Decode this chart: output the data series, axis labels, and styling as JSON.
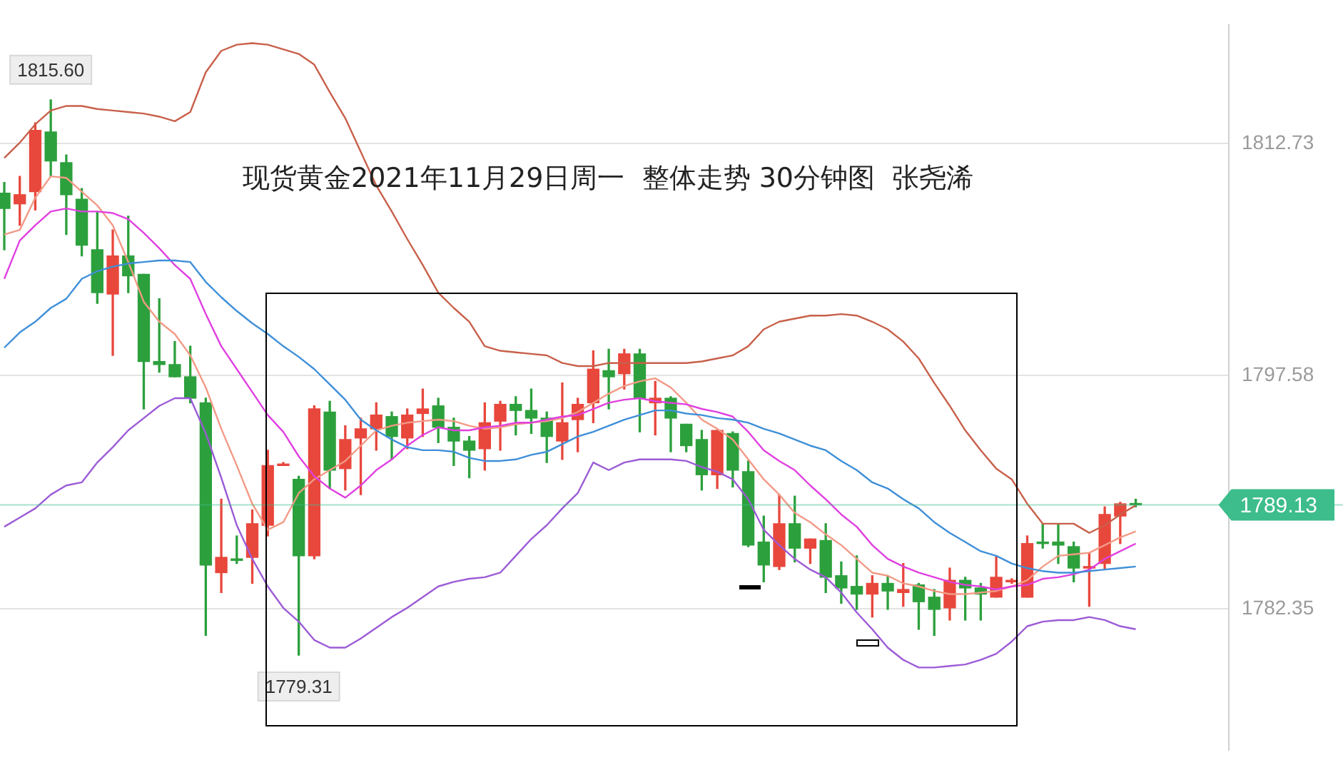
{
  "chart_data": {
    "type": "candlestick",
    "title": "现货黄金2021年11月29日周一  整体走势 30分钟图  张尧浠",
    "categories": [
      null,
      null,
      null,
      null,
      null,
      null,
      null,
      null,
      null,
      null,
      null,
      null,
      null,
      null,
      null,
      null,
      null,
      null,
      null,
      null,
      null,
      null,
      null,
      null,
      null,
      null,
      null,
      null,
      null,
      null,
      null,
      null,
      null,
      null,
      null,
      null,
      null,
      null,
      null,
      null,
      null,
      null,
      null,
      null,
      null,
      null,
      null,
      null,
      null,
      null,
      null,
      null,
      null,
      null,
      null,
      null,
      null,
      null,
      null,
      null,
      null,
      null,
      null,
      null,
      null,
      null,
      null,
      null,
      null,
      null,
      null,
      null,
      null,
      null
    ],
    "ohlc": [
      [
        1809.5,
        1810.2,
        1805.8,
        1808.5
      ],
      [
        1808.8,
        1810.6,
        1807.4,
        1809.4
      ],
      [
        1809.6,
        1814.1,
        1808.4,
        1813.6
      ],
      [
        1813.5,
        1815.6,
        1810.6,
        1811.6
      ],
      [
        1811.5,
        1812.0,
        1806.8,
        1809.4
      ],
      [
        1809.1,
        1809.8,
        1805.4,
        1806.1
      ],
      [
        1805.8,
        1808.3,
        1802.3,
        1803.0
      ],
      [
        1802.9,
        1807.1,
        1798.9,
        1805.4
      ],
      [
        1805.4,
        1808.0,
        1803.0,
        1804.1
      ],
      [
        1804.2,
        1804.2,
        1795.4,
        1798.5
      ],
      [
        1798.5,
        1802.6,
        1797.8,
        1798.3
      ],
      [
        1798.3,
        1799.8,
        1797.5,
        1797.5
      ],
      [
        1797.5,
        1799.5,
        1795.8,
        1796.1
      ],
      [
        1795.8,
        1796.1,
        1780.6,
        1785.2
      ],
      [
        1784.7,
        1789.5,
        1783.4,
        1785.7
      ],
      [
        1785.6,
        1787.1,
        1785.3,
        1785.5
      ],
      [
        1785.7,
        1788.8,
        1784.0,
        1787.9
      ],
      [
        1787.8,
        1792.7,
        1787.1,
        1791.7
      ],
      [
        1791.7,
        1791.9,
        1791.7,
        1791.8
      ],
      [
        1790.8,
        1791.0,
        1779.31,
        1785.8
      ],
      [
        1785.8,
        1795.6,
        1785.6,
        1795.4
      ],
      [
        1795.2,
        1795.9,
        1790.2,
        1791.4
      ],
      [
        1791.5,
        1794.3,
        1790.1,
        1793.4
      ],
      [
        1793.5,
        1794.8,
        1789.8,
        1794.1
      ],
      [
        1794.1,
        1795.8,
        1792.7,
        1795.0
      ],
      [
        1794.9,
        1795.2,
        1792.1,
        1793.6
      ],
      [
        1793.5,
        1795.4,
        1792.8,
        1795.0
      ],
      [
        1795.1,
        1796.7,
        1793.6,
        1795.4
      ],
      [
        1795.6,
        1796.1,
        1793.2,
        1794.2
      ],
      [
        1794.2,
        1794.8,
        1791.7,
        1793.3
      ],
      [
        1793.3,
        1793.6,
        1790.9,
        1792.7
      ],
      [
        1792.8,
        1795.8,
        1791.4,
        1794.5
      ],
      [
        1794.6,
        1795.9,
        1792.7,
        1795.7
      ],
      [
        1795.7,
        1796.2,
        1793.7,
        1795.3
      ],
      [
        1795.3,
        1796.7,
        1793.8,
        1794.8
      ],
      [
        1794.8,
        1795.2,
        1791.9,
        1793.6
      ],
      [
        1793.3,
        1797.1,
        1792.1,
        1794.5
      ],
      [
        1794.7,
        1796.1,
        1792.6,
        1795.7
      ],
      [
        1795.8,
        1799.2,
        1794.5,
        1798.0
      ],
      [
        1797.9,
        1799.3,
        1795.4,
        1797.5
      ],
      [
        1797.7,
        1799.3,
        1796.7,
        1799.0
      ],
      [
        1799.0,
        1799.3,
        1793.9,
        1796.1
      ],
      [
        1795.8,
        1797.2,
        1793.7,
        1796.1
      ],
      [
        1796.1,
        1796.2,
        1792.6,
        1794.8
      ],
      [
        1794.4,
        1794.4,
        1792.6,
        1793.0
      ],
      [
        1793.4,
        1794.0,
        1790.1,
        1791.1
      ],
      [
        1791.1,
        1794.0,
        1790.2,
        1794.0
      ],
      [
        1793.8,
        1793.9,
        1790.3,
        1791.4
      ],
      [
        1791.3,
        1792.0,
        1786.4,
        1786.5
      ],
      [
        1786.7,
        1788.4,
        1784.1,
        1785.2
      ],
      [
        1785.1,
        1789.8,
        1784.9,
        1787.9
      ],
      [
        1787.9,
        1789.7,
        1785.4,
        1786.3
      ],
      [
        1786.3,
        1786.9,
        1785.3,
        1786.9
      ],
      [
        1786.8,
        1787.9,
        1783.4,
        1784.4
      ],
      [
        1784.5,
        1785.4,
        1782.7,
        1783.7
      ],
      [
        1783.8,
        1785.8,
        1782.3,
        1783.3
      ],
      [
        1783.3,
        1784.5,
        1781.8,
        1784.0
      ],
      [
        1784.0,
        1784.5,
        1782.3,
        1783.5
      ],
      [
        1783.4,
        1785.3,
        1782.5,
        1783.6
      ],
      [
        1783.9,
        1784.0,
        1781.0,
        1782.8
      ],
      [
        1783.1,
        1783.6,
        1780.6,
        1782.3
      ],
      [
        1782.4,
        1785.0,
        1781.6,
        1784.2
      ],
      [
        1784.2,
        1784.4,
        1781.6,
        1783.7
      ],
      [
        1783.7,
        1784.0,
        1781.6,
        1783.3
      ],
      [
        1783.1,
        1785.8,
        1783.1,
        1784.4
      ],
      [
        1784.1,
        1784.3,
        1784.0,
        1784.2
      ],
      [
        1783.1,
        1787.1,
        1783.1,
        1786.6
      ],
      [
        1786.7,
        1787.9,
        1786.3,
        1786.6
      ],
      [
        1786.7,
        1787.9,
        1785.3,
        1786.5
      ],
      [
        1786.4,
        1786.7,
        1784.1,
        1785.0
      ],
      [
        1785.0,
        1786.0,
        1782.5,
        1785.1
      ],
      [
        1785.3,
        1789.0,
        1784.9,
        1788.5
      ],
      [
        1788.4,
        1789.3,
        1786.6,
        1789.2
      ],
      [
        1789.2,
        1789.5,
        1789.0,
        1789.13
      ]
    ],
    "colors": [
      "#2ca03c",
      "#e8473c",
      "#e8473c",
      "#2ca03c",
      "#2ca03c",
      "#2ca03c",
      "#2ca03c",
      "#e8473c",
      "#2ca03c",
      "#2ca03c",
      "#2ca03c",
      "#2ca03c",
      "#2ca03c",
      "#2ca03c",
      "#e8473c",
      "#2ca03c",
      "#e8473c",
      "#e8473c",
      "#e8473c",
      "#2ca03c",
      "#e8473c",
      "#2ca03c",
      "#e8473c",
      "#e8473c",
      "#e8473c",
      "#2ca03c",
      "#e8473c",
      "#e8473c",
      "#2ca03c",
      "#2ca03c",
      "#2ca03c",
      "#e8473c",
      "#e8473c",
      "#2ca03c",
      "#2ca03c",
      "#2ca03c",
      "#e8473c",
      "#e8473c",
      "#e8473c",
      "#2ca03c",
      "#e8473c",
      "#2ca03c",
      "#e8473c",
      "#2ca03c",
      "#2ca03c",
      "#2ca03c",
      "#e8473c",
      "#2ca03c",
      "#2ca03c",
      "#2ca03c",
      "#e8473c",
      "#2ca03c",
      "#e8473c",
      "#2ca03c",
      "#2ca03c",
      "#2ca03c",
      "#e8473c",
      "#2ca03c",
      "#e8473c",
      "#2ca03c",
      "#2ca03c",
      "#e8473c",
      "#2ca03c",
      "#2ca03c",
      "#e8473c",
      "#e8473c",
      "#e8473c",
      "#2ca03c",
      "#2ca03c",
      "#2ca03c",
      "#e8473c",
      "#e8473c",
      "#e8473c",
      "#2ca03c"
    ],
    "series": [
      {
        "type": "line",
        "color": "#c8604a",
        "values": [
          1811.8,
          1812.8,
          1814.0,
          1814.9,
          1815.2,
          1815.2,
          1815.0,
          1814.9,
          1814.8,
          1814.7,
          1814.5,
          1814.2,
          1814.8,
          1817.4,
          1818.8,
          1819.2,
          1819.3,
          1819.2,
          1818.9,
          1818.6,
          1817.9,
          1816.1,
          1814.4,
          1812.2,
          1810.0,
          1808.3,
          1806.5,
          1804.8,
          1803.0,
          1802.0,
          1801.1,
          1799.5,
          1799.2,
          1799.1,
          1799.0,
          1798.9,
          1798.4,
          1798.2,
          1798.2,
          1798.4,
          1798.4,
          1798.4,
          1798.4,
          1798.4,
          1798.4,
          1798.5,
          1798.7,
          1798.9,
          1799.5,
          1800.6,
          1801.1,
          1801.3,
          1801.5,
          1801.5,
          1801.6,
          1801.5,
          1801.1,
          1800.6,
          1799.8,
          1798.7,
          1797.1,
          1795.6,
          1794.0,
          1792.7,
          1791.5,
          1790.8,
          1789.2,
          1787.9,
          1787.9,
          1787.9,
          1787.3,
          1787.8,
          1788.5,
          1789.1
        ]
      },
      {
        "type": "line",
        "color": "#3f8fd8",
        "values": [
          1799.4,
          1800.4,
          1801.1,
          1802.0,
          1802.6,
          1803.9,
          1804.4,
          1804.7,
          1804.9,
          1805.0,
          1805.1,
          1805.1,
          1805.0,
          1803.7,
          1802.7,
          1801.8,
          1801.0,
          1800.3,
          1799.5,
          1798.8,
          1798.0,
          1797.0,
          1796.0,
          1794.7,
          1794.0,
          1793.4,
          1792.9,
          1792.7,
          1792.7,
          1792.6,
          1792.2,
          1792.0,
          1792.0,
          1792.1,
          1792.4,
          1792.6,
          1793.1,
          1793.6,
          1793.9,
          1794.3,
          1794.7,
          1795.0,
          1795.3,
          1795.3,
          1795.1,
          1795.0,
          1794.8,
          1794.7,
          1794.5,
          1794.1,
          1793.8,
          1793.4,
          1793.0,
          1792.7,
          1792.0,
          1791.4,
          1790.6,
          1790.2,
          1789.5,
          1788.9,
          1788.0,
          1787.3,
          1786.7,
          1786.1,
          1785.8,
          1785.3,
          1785.0,
          1784.8,
          1784.7,
          1784.7,
          1784.8,
          1784.9,
          1785.0,
          1785.1
        ]
      },
      {
        "type": "line",
        "color": "#9c5bd6",
        "values": [
          1787.7,
          1788.3,
          1788.9,
          1789.8,
          1790.4,
          1790.6,
          1791.9,
          1792.9,
          1794.0,
          1794.8,
          1795.6,
          1796.1,
          1796.1,
          1793.8,
          1790.9,
          1787.8,
          1785.6,
          1783.8,
          1782.4,
          1781.5,
          1780.3,
          1779.8,
          1779.8,
          1780.4,
          1781.1,
          1781.8,
          1782.4,
          1783.1,
          1783.8,
          1784.1,
          1784.3,
          1784.4,
          1784.7,
          1785.8,
          1786.9,
          1787.8,
          1788.9,
          1789.9,
          1791.9,
          1791.4,
          1791.9,
          1792.1,
          1792.1,
          1792.1,
          1792.0,
          1791.6,
          1791.3,
          1790.8,
          1789.5,
          1787.5,
          1786.5,
          1785.6,
          1784.9,
          1784.4,
          1783.4,
          1782.1,
          1781.0,
          1779.8,
          1779.0,
          1778.5,
          1778.5,
          1778.6,
          1778.7,
          1779.0,
          1779.4,
          1780.2,
          1781.2,
          1781.5,
          1781.6,
          1781.6,
          1781.8,
          1781.6,
          1781.2,
          1781.0
        ]
      },
      {
        "type": "line",
        "color": "#e040e0",
        "values": [
          1803.9,
          1806.4,
          1807.4,
          1808.3,
          1808.5,
          1808.3,
          1808.3,
          1808.2,
          1807.8,
          1806.9,
          1805.9,
          1804.8,
          1803.9,
          1801.6,
          1799.5,
          1798.0,
          1796.5,
          1795.0,
          1793.9,
          1792.3,
          1791.0,
          1790.2,
          1789.6,
          1790.4,
          1791.4,
          1792.1,
          1793.0,
          1793.7,
          1794.2,
          1794.0,
          1794.0,
          1794.2,
          1794.3,
          1794.5,
          1794.5,
          1794.7,
          1794.9,
          1795.0,
          1795.4,
          1795.8,
          1796.0,
          1796.1,
          1795.9,
          1795.8,
          1795.7,
          1795.4,
          1795.2,
          1794.9,
          1793.9,
          1792.7,
          1792.0,
          1791.4,
          1790.4,
          1789.5,
          1788.5,
          1787.7,
          1786.5,
          1785.6,
          1785.1,
          1784.7,
          1784.4,
          1784.1,
          1783.9,
          1783.8,
          1783.6,
          1783.8,
          1783.9,
          1784.3,
          1784.4,
          1784.6,
          1784.9,
          1785.6,
          1786.1,
          1786.6
        ]
      },
      {
        "type": "line",
        "color": "#f29a86",
        "values": [
          1806.8,
          1807.1,
          1809.2,
          1810.6,
          1810.5,
          1809.6,
          1808.7,
          1807.4,
          1805.0,
          1802.4,
          1801.1,
          1800.3,
          1798.9,
          1796.8,
          1794.1,
          1791.7,
          1789.2,
          1787.5,
          1788.0,
          1789.9,
          1790.8,
          1791.4,
          1792.0,
          1793.0,
          1794.0,
          1794.3,
          1794.5,
          1794.6,
          1794.7,
          1794.6,
          1794.3,
          1794.1,
          1794.2,
          1794.4,
          1794.5,
          1794.6,
          1794.8,
          1795.2,
          1795.8,
          1796.4,
          1796.9,
          1797.2,
          1797.4,
          1796.8,
          1795.8,
          1794.7,
          1794.1,
          1793.4,
          1792.1,
          1790.8,
          1789.8,
          1788.6,
          1788.0,
          1787.2,
          1786.5,
          1785.6,
          1784.7,
          1784.5,
          1784.0,
          1783.8,
          1783.5,
          1783.3,
          1783.3,
          1783.4,
          1783.5,
          1783.8,
          1784.2,
          1785.1,
          1785.8,
          1785.9,
          1786.0,
          1786.5,
          1787.0,
          1787.4
        ]
      }
    ],
    "ylim": [
      1773.1,
      1820.5
    ],
    "yticks": [
      1812.73,
      1797.58,
      1782.35
    ],
    "grid": "y",
    "legend": false,
    "ref_lines": [
      {
        "axis": "y",
        "value": 1789.13,
        "label": "1789.13",
        "color": "#3dbd8b"
      }
    ],
    "annotations": [
      {
        "text": "1815.60",
        "y": 1815.6
      },
      {
        "text": "1779.31",
        "y": 1779.31
      }
    ]
  }
}
